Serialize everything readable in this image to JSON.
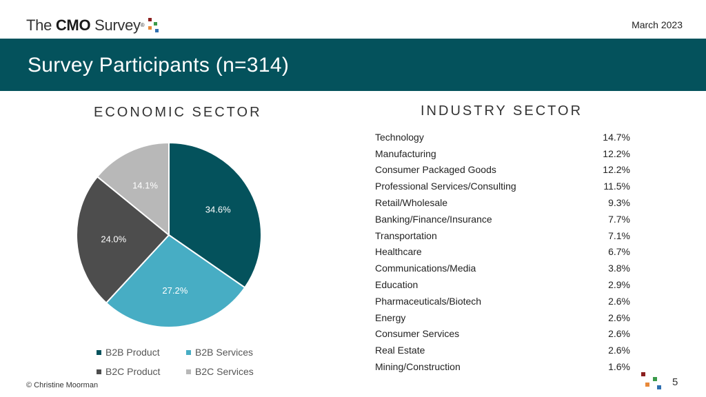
{
  "header": {
    "logo": {
      "prefix": "The ",
      "bold": "CMO",
      "suffix": " Survey",
      "reg": "®"
    },
    "date": "March 2023",
    "title": "Survey Participants (n=314)"
  },
  "economic_title": "ECONOMIC SECTOR",
  "industry_title": "INDUSTRY SECTOR",
  "chart_data": [
    {
      "type": "pie",
      "title": "ECONOMIC SECTOR",
      "categories": [
        "B2B Product",
        "B2B Services",
        "B2C Product",
        "B2C Services"
      ],
      "values": [
        34.6,
        27.2,
        24.0,
        14.1
      ],
      "labels": [
        "34.6%",
        "27.2%",
        "24.0%",
        "14.1%"
      ],
      "colors": [
        "#04525c",
        "#47adc4",
        "#4d4d4d",
        "#b8b8b8"
      ],
      "label_colors": [
        "#ffffff",
        "#ffffff",
        "#ffffff",
        "#ffffff"
      ],
      "legend_position": "bottom"
    },
    {
      "type": "table",
      "title": "INDUSTRY SECTOR",
      "rows": [
        {
          "label": "Technology",
          "value": "14.7%"
        },
        {
          "label": "Manufacturing",
          "value": "12.2%"
        },
        {
          "label": "Consumer Packaged Goods",
          "value": "12.2%"
        },
        {
          "label": "Professional Services/Consulting",
          "value": "11.5%"
        },
        {
          "label": "Retail/Wholesale",
          "value": "9.3%"
        },
        {
          "label": "Banking/Finance/Insurance",
          "value": "7.7%"
        },
        {
          "label": "Transportation",
          "value": "7.1%"
        },
        {
          "label": "Healthcare",
          "value": "6.7%"
        },
        {
          "label": "Communications/Media",
          "value": "3.8%"
        },
        {
          "label": "Education",
          "value": "2.9%"
        },
        {
          "label": "Pharmaceuticals/Biotech",
          "value": "2.6%"
        },
        {
          "label": "Energy",
          "value": "2.6%"
        },
        {
          "label": "Consumer Services",
          "value": "2.6%"
        },
        {
          "label": "Real Estate",
          "value": "2.6%"
        },
        {
          "label": "Mining/Construction",
          "value": "1.6%"
        }
      ]
    }
  ],
  "footer": {
    "copyright": "© Christine Moorman",
    "page_number": "5"
  },
  "brand_colors": {
    "teal": "#04525c",
    "light_blue": "#47adc4",
    "dot_red": "#8b1f1f",
    "dot_orange": "#e8893a",
    "dot_green": "#3a9a4a",
    "dot_blue": "#2f6fb0"
  }
}
